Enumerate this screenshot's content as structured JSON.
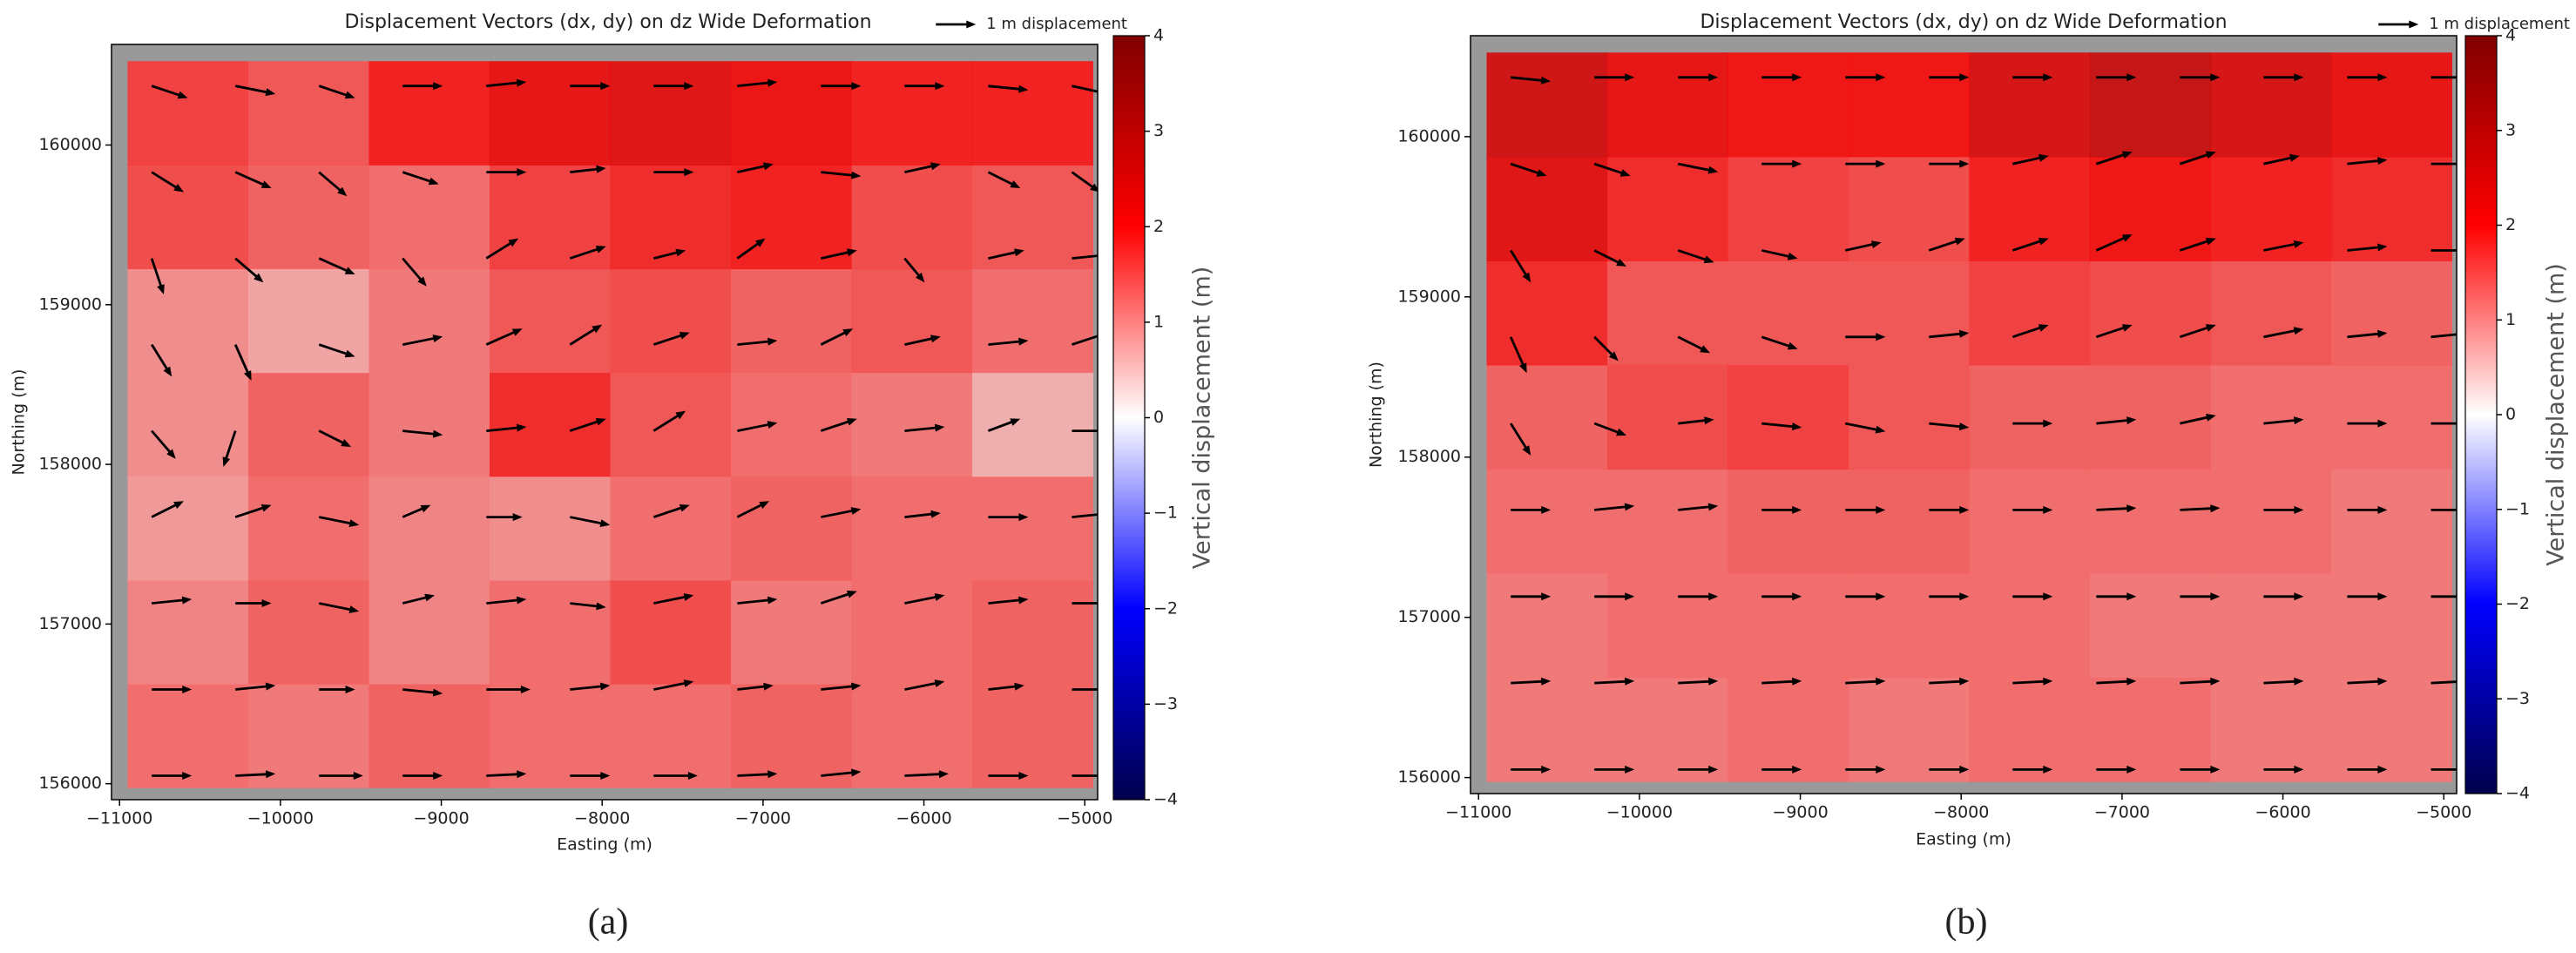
{
  "chart_data": [
    {
      "type": "quiver",
      "label": "(a)",
      "title": "Displacement Vectors (dx, dy) on dz Wide Deformation",
      "key_label": "1 m displacement",
      "x_label": "Easting (m)",
      "y_label": "Northing (m)",
      "colorbar_label": "Vertical displacement (m)",
      "xlim": [
        -11050,
        -4920
      ],
      "ylim": [
        155900,
        160630
      ],
      "xticks": [
        {
          "value": -11000,
          "label": "−11000"
        },
        {
          "value": -10000,
          "label": "−10000"
        },
        {
          "value": -9000,
          "label": "−9000"
        },
        {
          "value": -8000,
          "label": "−8000"
        },
        {
          "value": -7000,
          "label": "−7000"
        },
        {
          "value": -6000,
          "label": "−6000"
        },
        {
          "value": -5000,
          "label": "−5000"
        }
      ],
      "yticks": [
        156000,
        157000,
        158000,
        159000,
        160000
      ],
      "clim": [
        -4,
        4
      ],
      "cticks": [
        {
          "value": -4,
          "label": "−4"
        },
        {
          "value": -3,
          "label": "−3"
        },
        {
          "value": -2,
          "label": "−2"
        },
        {
          "value": -1,
          "label": "−1"
        },
        0,
        1,
        2,
        3,
        4
      ],
      "cmap_colors": [
        "#00004c",
        "#0000ff",
        "#ffffff",
        "#ff0000",
        "#800000"
      ],
      "background_color": "#999999",
      "arrow_color": "#000000",
      "heat_x": [
        -10575,
        -9825,
        -9075,
        -8325,
        -7575,
        -6825,
        -6075,
        -5325
      ],
      "heat_y": [
        156300,
        156950,
        157600,
        158250,
        158900,
        159550,
        160200
      ],
      "dz": [
        [
          1.2,
          1.1,
          1.3,
          1.2,
          1.2,
          1.3,
          1.2,
          1.3
        ],
        [
          1.0,
          1.3,
          1.0,
          1.2,
          1.5,
          1.1,
          1.2,
          1.3
        ],
        [
          0.8,
          1.2,
          1.0,
          0.9,
          1.2,
          1.3,
          1.2,
          1.2
        ],
        [
          0.9,
          1.3,
          1.1,
          1.8,
          1.4,
          1.2,
          1.1,
          0.6
        ],
        [
          0.9,
          0.7,
          1.1,
          1.4,
          1.5,
          1.3,
          1.4,
          1.2
        ],
        [
          1.5,
          1.3,
          1.2,
          1.6,
          1.8,
          1.9,
          1.5,
          1.4
        ],
        [
          1.6,
          1.4,
          1.9,
          2.2,
          2.3,
          2.1,
          1.9,
          1.9
        ]
      ],
      "grid_x": [
        -10800,
        -10280,
        -9760,
        -9240,
        -8720,
        -8200,
        -7680,
        -7160,
        -6640,
        -6120,
        -5600,
        -5080
      ],
      "grid_y": [
        156050,
        156590,
        157130,
        157670,
        158210,
        158750,
        159290,
        159830,
        160370
      ],
      "u": [
        [
          1.0,
          1.0,
          1.1,
          1.0,
          1.0,
          1.0,
          1.1,
          1.0,
          1.0,
          1.1,
          1.0,
          1.0
        ],
        [
          1.0,
          1.0,
          0.9,
          1.0,
          1.1,
          1.0,
          1.0,
          0.9,
          1.0,
          1.0,
          0.9,
          1.0
        ],
        [
          1.0,
          0.9,
          1.0,
          0.8,
          1.0,
          0.9,
          1.0,
          1.0,
          0.9,
          1.0,
          1.0,
          1.0
        ],
        [
          0.8,
          0.9,
          1.0,
          0.7,
          0.9,
          1.0,
          0.9,
          0.8,
          1.0,
          0.9,
          1.0,
          1.0
        ],
        [
          0.6,
          -0.3,
          0.8,
          1.0,
          1.0,
          0.9,
          0.8,
          1.0,
          0.9,
          1.0,
          0.8,
          1.0
        ],
        [
          0.5,
          0.4,
          0.9,
          1.0,
          0.9,
          0.8,
          0.9,
          1.0,
          0.8,
          0.9,
          1.0,
          0.9
        ],
        [
          0.3,
          0.7,
          0.9,
          0.6,
          0.8,
          0.9,
          0.8,
          0.7,
          0.9,
          0.5,
          0.9,
          1.0
        ],
        [
          0.8,
          0.9,
          0.7,
          0.9,
          1.0,
          0.9,
          1.0,
          0.9,
          1.0,
          0.9,
          0.8,
          0.7
        ],
        [
          0.9,
          1.0,
          0.9,
          1.0,
          1.0,
          1.0,
          1.0,
          1.0,
          1.0,
          1.0,
          1.0,
          0.9
        ]
      ],
      "v": [
        [
          0,
          0.05,
          0,
          0,
          0.05,
          0,
          0,
          0.05,
          0.1,
          0.05,
          0,
          0
        ],
        [
          0,
          0.1,
          0,
          -0.1,
          0,
          0.1,
          0.2,
          0.1,
          0.1,
          0.2,
          0.1,
          0
        ],
        [
          0.1,
          0,
          -0.2,
          0.2,
          0.1,
          -0.1,
          0.2,
          0.1,
          0.3,
          0.2,
          0.1,
          0
        ],
        [
          0.4,
          0.3,
          -0.2,
          0.3,
          0,
          -0.2,
          0.3,
          0.4,
          0.2,
          0.1,
          0,
          0.1
        ],
        [
          -0.7,
          -0.9,
          -0.4,
          -0.1,
          0.1,
          0.3,
          0.5,
          0.2,
          0.3,
          0.1,
          0.3,
          0
        ],
        [
          -0.8,
          -0.9,
          -0.3,
          0.2,
          0.4,
          0.5,
          0.3,
          0.1,
          0.4,
          0.2,
          0.1,
          0.3
        ],
        [
          -0.9,
          -0.6,
          -0.4,
          -0.7,
          0.5,
          0.3,
          0.2,
          0.5,
          0.2,
          -0.6,
          0.2,
          0.1
        ],
        [
          -0.5,
          -0.4,
          -0.6,
          -0.3,
          0,
          0.1,
          0,
          0.2,
          -0.1,
          0.2,
          -0.4,
          -0.5
        ],
        [
          -0.3,
          -0.2,
          -0.3,
          0,
          0.1,
          0,
          0,
          0.1,
          0,
          0,
          -0.1,
          -0.2
        ]
      ]
    },
    {
      "type": "quiver",
      "label": "(b)",
      "title": "Displacement Vectors (dx, dy) on dz Wide Deformation",
      "key_label": "1 m displacement",
      "x_label": "Easting (m)",
      "y_label": "Northing (m)",
      "colorbar_label": "Vertical displacement (m)",
      "xlim": [
        -11050,
        -4920
      ],
      "ylim": [
        155900,
        160630
      ],
      "xticks": [
        {
          "value": -11000,
          "label": "−11000"
        },
        {
          "value": -10000,
          "label": "−10000"
        },
        {
          "value": -9000,
          "label": "−9000"
        },
        {
          "value": -8000,
          "label": "−8000"
        },
        {
          "value": -7000,
          "label": "−7000"
        },
        {
          "value": -6000,
          "label": "−6000"
        },
        {
          "value": -5000,
          "label": "−5000"
        }
      ],
      "yticks": [
        156000,
        157000,
        158000,
        159000,
        160000
      ],
      "clim": [
        -4,
        4
      ],
      "cticks": [
        {
          "value": -4,
          "label": "−4"
        },
        {
          "value": -3,
          "label": "−3"
        },
        {
          "value": -2,
          "label": "−2"
        },
        {
          "value": -1,
          "label": "−1"
        },
        0,
        1,
        2,
        3,
        4
      ],
      "cmap_colors": [
        "#00004c",
        "#0000ff",
        "#ffffff",
        "#ff0000",
        "#800000"
      ],
      "background_color": "#999999",
      "arrow_color": "#000000",
      "heat_x": [
        -10575,
        -9825,
        -9075,
        -8325,
        -7575,
        -6825,
        -6075,
        -5325
      ],
      "heat_y": [
        156300,
        156950,
        157600,
        158250,
        158900,
        159550,
        160200
      ],
      "dz": [
        [
          1.1,
          1.1,
          1.2,
          1.1,
          1.2,
          1.2,
          1.1,
          1.1
        ],
        [
          1.1,
          1.2,
          1.2,
          1.2,
          1.2,
          1.1,
          1.1,
          1.1
        ],
        [
          1.2,
          1.2,
          1.3,
          1.3,
          1.2,
          1.2,
          1.2,
          1.1
        ],
        [
          1.3,
          1.5,
          1.6,
          1.4,
          1.3,
          1.3,
          1.2,
          1.2
        ],
        [
          1.8,
          1.4,
          1.4,
          1.4,
          1.6,
          1.5,
          1.4,
          1.3
        ],
        [
          2.3,
          1.8,
          1.6,
          1.5,
          1.9,
          2.0,
          1.9,
          1.8
        ],
        [
          2.6,
          2.2,
          2.0,
          2.0,
          2.5,
          2.8,
          2.5,
          2.2
        ]
      ],
      "grid_x": [
        -10800,
        -10280,
        -9760,
        -9240,
        -8720,
        -8200,
        -7680,
        -7160,
        -6640,
        -6120,
        -5600,
        -5080
      ],
      "grid_y": [
        156050,
        156590,
        157130,
        157670,
        158210,
        158750,
        159290,
        159830,
        160370
      ],
      "u": [
        [
          1.0,
          1.0,
          1.0,
          1.0,
          1.0,
          1.0,
          1.0,
          1.0,
          1.0,
          1.0,
          1.0,
          1.0
        ],
        [
          1.0,
          1.0,
          1.0,
          1.0,
          1.0,
          1.0,
          1.0,
          1.0,
          1.0,
          1.0,
          1.0,
          1.0
        ],
        [
          1.0,
          1.0,
          1.0,
          1.0,
          1.0,
          1.0,
          1.0,
          1.0,
          1.0,
          1.0,
          1.0,
          1.0
        ],
        [
          1.0,
          1.0,
          1.0,
          1.0,
          1.0,
          1.0,
          1.0,
          1.0,
          1.0,
          1.0,
          1.0,
          1.0
        ],
        [
          0.5,
          0.8,
          0.9,
          1.0,
          1.0,
          1.0,
          1.0,
          1.0,
          0.9,
          1.0,
          1.0,
          1.0
        ],
        [
          0.4,
          0.6,
          0.8,
          0.9,
          1.0,
          1.0,
          0.9,
          0.9,
          0.9,
          1.0,
          1.0,
          1.0
        ],
        [
          0.5,
          0.8,
          0.9,
          0.9,
          0.9,
          0.9,
          0.9,
          0.9,
          0.9,
          1.0,
          1.0,
          1.0
        ],
        [
          0.9,
          0.9,
          1.0,
          1.0,
          1.0,
          1.0,
          0.9,
          0.9,
          0.9,
          0.9,
          1.0,
          1.0
        ],
        [
          1.0,
          1.0,
          1.0,
          1.0,
          1.0,
          1.0,
          1.0,
          1.0,
          1.0,
          1.0,
          1.0,
          1.0
        ]
      ],
      "v": [
        [
          0,
          0,
          0,
          0,
          0,
          0,
          0,
          0,
          0,
          0,
          0,
          0
        ],
        [
          0.05,
          0.05,
          0.05,
          0.05,
          0.05,
          0.05,
          0.05,
          0.05,
          0.05,
          0.05,
          0.05,
          0.05
        ],
        [
          0,
          0,
          0,
          0,
          0,
          0,
          0,
          0,
          0,
          0,
          0,
          0
        ],
        [
          0,
          0.1,
          0.1,
          0,
          0,
          0,
          0,
          0.05,
          0.05,
          0,
          0,
          0
        ],
        [
          -0.8,
          -0.3,
          0.1,
          -0.1,
          -0.2,
          -0.1,
          0,
          0.1,
          0.2,
          0.1,
          0,
          0
        ],
        [
          -0.9,
          -0.6,
          -0.4,
          -0.3,
          0,
          0.1,
          0.3,
          0.3,
          0.3,
          0.2,
          0.1,
          0.1
        ],
        [
          -0.8,
          -0.4,
          -0.3,
          -0.2,
          0.2,
          0.3,
          0.3,
          0.4,
          0.3,
          0.2,
          0.1,
          0
        ],
        [
          -0.3,
          -0.3,
          -0.2,
          0,
          0,
          0,
          0.2,
          0.3,
          0.3,
          0.2,
          0.1,
          0
        ],
        [
          -0.1,
          0,
          0,
          0,
          0,
          0,
          0,
          0,
          0,
          0,
          0,
          0
        ]
      ]
    }
  ]
}
